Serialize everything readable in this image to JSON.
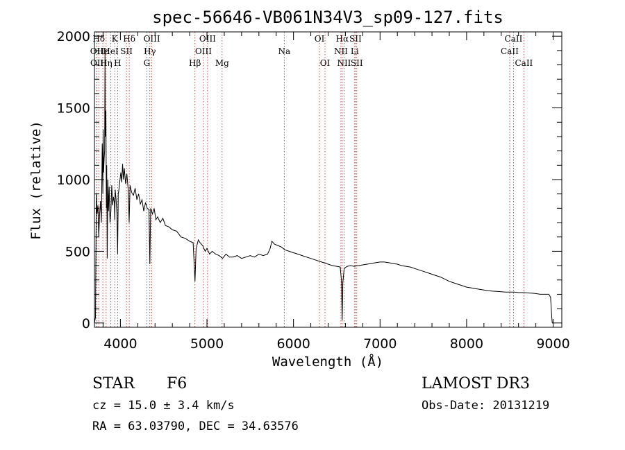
{
  "chart_data": {
    "type": "line",
    "title": "spec-56646-VB061N34V3_sp09-127.fits",
    "xlabel": "Wavelength (Å)",
    "ylabel": "Flux (relative)",
    "xlim": [
      3700,
      9100
    ],
    "ylim": [
      -30,
      2030
    ],
    "xticks": [
      4000,
      5000,
      6000,
      7000,
      8000,
      9000
    ],
    "yticks": [
      0,
      500,
      1000,
      1500,
      2000
    ],
    "series": [
      {
        "name": "flux",
        "points": [
          [
            3700,
            0
          ],
          [
            3712,
            40
          ],
          [
            3722,
            900
          ],
          [
            3730,
            760
          ],
          [
            3740,
            820
          ],
          [
            3750,
            600
          ],
          [
            3760,
            760
          ],
          [
            3770,
            850
          ],
          [
            3780,
            700
          ],
          [
            3790,
            1250
          ],
          [
            3797,
            900
          ],
          [
            3800,
            1350
          ],
          [
            3806,
            1050
          ],
          [
            3812,
            1150
          ],
          [
            3818,
            1200
          ],
          [
            3822,
            1890
          ],
          [
            3826,
            1300
          ],
          [
            3832,
            1480
          ],
          [
            3838,
            800
          ],
          [
            3842,
            1100
          ],
          [
            3848,
            450
          ],
          [
            3855,
            1000
          ],
          [
            3862,
            780
          ],
          [
            3870,
            950
          ],
          [
            3880,
            700
          ],
          [
            3890,
            780
          ],
          [
            3900,
            960
          ],
          [
            3910,
            820
          ],
          [
            3920,
            880
          ],
          [
            3930,
            840
          ],
          [
            3935,
            720
          ],
          [
            3940,
            930
          ],
          [
            3950,
            860
          ],
          [
            3960,
            760
          ],
          [
            3968,
            480
          ],
          [
            3975,
            900
          ],
          [
            3985,
            940
          ],
          [
            3995,
            1000
          ],
          [
            4005,
            1050
          ],
          [
            4015,
            980
          ],
          [
            4025,
            1110
          ],
          [
            4035,
            1000
          ],
          [
            4045,
            1080
          ],
          [
            4060,
            970
          ],
          [
            4075,
            1040
          ],
          [
            4090,
            930
          ],
          [
            4101,
            700
          ],
          [
            4112,
            960
          ],
          [
            4130,
            910
          ],
          [
            4150,
            890
          ],
          [
            4170,
            940
          ],
          [
            4190,
            860
          ],
          [
            4210,
            900
          ],
          [
            4230,
            830
          ],
          [
            4250,
            860
          ],
          [
            4270,
            780
          ],
          [
            4290,
            840
          ],
          [
            4310,
            800
          ],
          [
            4330,
            790
          ],
          [
            4340,
            410
          ],
          [
            4350,
            800
          ],
          [
            4370,
            760
          ],
          [
            4390,
            800
          ],
          [
            4410,
            720
          ],
          [
            4430,
            740
          ],
          [
            4460,
            700
          ],
          [
            4490,
            730
          ],
          [
            4520,
            680
          ],
          [
            4560,
            670
          ],
          [
            4600,
            650
          ],
          [
            4650,
            640
          ],
          [
            4700,
            600
          ],
          [
            4750,
            590
          ],
          [
            4800,
            570
          ],
          [
            4840,
            560
          ],
          [
            4862,
            290
          ],
          [
            4875,
            520
          ],
          [
            4900,
            580
          ],
          [
            4920,
            560
          ],
          [
            4950,
            540
          ],
          [
            4980,
            500
          ],
          [
            5000,
            520
          ],
          [
            5030,
            480
          ],
          [
            5060,
            500
          ],
          [
            5100,
            480
          ],
          [
            5140,
            470
          ],
          [
            5180,
            450
          ],
          [
            5220,
            480
          ],
          [
            5260,
            460
          ],
          [
            5300,
            460
          ],
          [
            5350,
            470
          ],
          [
            5400,
            450
          ],
          [
            5450,
            460
          ],
          [
            5500,
            470
          ],
          [
            5550,
            460
          ],
          [
            5600,
            480
          ],
          [
            5650,
            470
          ],
          [
            5700,
            480
          ],
          [
            5730,
            520
          ],
          [
            5750,
            570
          ],
          [
            5780,
            550
          ],
          [
            5820,
            540
          ],
          [
            5860,
            530
          ],
          [
            5900,
            510
          ],
          [
            5950,
            500
          ],
          [
            6000,
            490
          ],
          [
            6050,
            480
          ],
          [
            6100,
            470
          ],
          [
            6150,
            460
          ],
          [
            6200,
            450
          ],
          [
            6250,
            440
          ],
          [
            6300,
            430
          ],
          [
            6350,
            420
          ],
          [
            6400,
            410
          ],
          [
            6450,
            400
          ],
          [
            6500,
            395
          ],
          [
            6540,
            390
          ],
          [
            6555,
            290
          ],
          [
            6562,
            20
          ],
          [
            6570,
            280
          ],
          [
            6585,
            380
          ],
          [
            6620,
            395
          ],
          [
            6660,
            400
          ],
          [
            6700,
            395
          ],
          [
            6750,
            400
          ],
          [
            6800,
            405
          ],
          [
            6850,
            410
          ],
          [
            6900,
            415
          ],
          [
            6950,
            420
          ],
          [
            7000,
            425
          ],
          [
            7050,
            425
          ],
          [
            7100,
            420
          ],
          [
            7150,
            415
          ],
          [
            7200,
            410
          ],
          [
            7250,
            400
          ],
          [
            7300,
            395
          ],
          [
            7350,
            390
          ],
          [
            7400,
            380
          ],
          [
            7450,
            370
          ],
          [
            7500,
            360
          ],
          [
            7550,
            350
          ],
          [
            7600,
            340
          ],
          [
            7650,
            330
          ],
          [
            7700,
            320
          ],
          [
            7750,
            305
          ],
          [
            7800,
            290
          ],
          [
            7850,
            280
          ],
          [
            7900,
            270
          ],
          [
            7950,
            260
          ],
          [
            8000,
            250
          ],
          [
            8050,
            245
          ],
          [
            8100,
            240
          ],
          [
            8150,
            235
          ],
          [
            8200,
            230
          ],
          [
            8250,
            225
          ],
          [
            8300,
            222
          ],
          [
            8350,
            220
          ],
          [
            8400,
            218
          ],
          [
            8450,
            215
          ],
          [
            8500,
            215
          ],
          [
            8550,
            215
          ],
          [
            8600,
            212
          ],
          [
            8650,
            212
          ],
          [
            8700,
            210
          ],
          [
            8750,
            208
          ],
          [
            8800,
            205
          ],
          [
            8850,
            200
          ],
          [
            8900,
            200
          ],
          [
            8950,
            200
          ],
          [
            8970,
            180
          ],
          [
            8985,
            30
          ],
          [
            8990,
            0
          ]
        ]
      }
    ],
    "lines": [
      {
        "label": "OII",
        "wave": 3727,
        "row": 1
      },
      {
        "label": "OII",
        "wave": 3729,
        "row": 2
      },
      {
        "label": "Hδ",
        "wave": 3750,
        "row": 0
      },
      {
        "label": "Hε",
        "wave": 3797,
        "row": 1
      },
      {
        "label": "Hη",
        "wave": 3835,
        "row": 2
      },
      {
        "label": "K",
        "wave": 3934,
        "row": 0
      },
      {
        "label": "HeI",
        "wave": 3889,
        "row": 1
      },
      {
        "label": "H",
        "wave": 3968,
        "row": 2
      },
      {
        "label": "Hδ",
        "wave": 4102,
        "row": 0
      },
      {
        "label": "SII",
        "wave": 4070,
        "row": 1
      },
      {
        "label": "OIII",
        "wave": 4363,
        "row": 0
      },
      {
        "label": "Hγ",
        "wave": 4340,
        "row": 1
      },
      {
        "label": "G",
        "wave": 4305,
        "row": 2
      },
      {
        "label": "Hβ",
        "wave": 4861,
        "row": 2
      },
      {
        "label": "OIII",
        "wave": 5007,
        "row": 0
      },
      {
        "label": "OIII",
        "wave": 4959,
        "row": 1
      },
      {
        "label": "Mg",
        "wave": 5175,
        "row": 2
      },
      {
        "label": "Na",
        "wave": 5893,
        "row": 1
      },
      {
        "label": "OI",
        "wave": 6300,
        "row": 0
      },
      {
        "label": "OI",
        "wave": 6364,
        "row": 2
      },
      {
        "label": "Hα",
        "wave": 6563,
        "row": 0
      },
      {
        "label": "NII",
        "wave": 6548,
        "row": 1
      },
      {
        "label": "NII",
        "wave": 6584,
        "row": 2
      },
      {
        "label": "SII",
        "wave": 6716,
        "row": 0
      },
      {
        "label": "Li",
        "wave": 6707,
        "row": 1
      },
      {
        "label": "SII",
        "wave": 6731,
        "row": 2
      },
      {
        "label": "CaII",
        "wave": 8542,
        "row": 0
      },
      {
        "label": "CaII",
        "wave": 8498,
        "row": 1
      },
      {
        "label": "CaII",
        "wave": 8662,
        "row": 2
      }
    ]
  },
  "info": {
    "class": "STAR",
    "subclass": "F6",
    "survey": "LAMOST DR3",
    "cz": "cz = 15.0 ± 3.4 km/s",
    "obs_date": "Obs-Date: 20131219",
    "radec": "RA =  63.03790, DEC =  34.63576"
  },
  "colors": {
    "line_marker": "#b22222",
    "spectrum": "#000000"
  }
}
